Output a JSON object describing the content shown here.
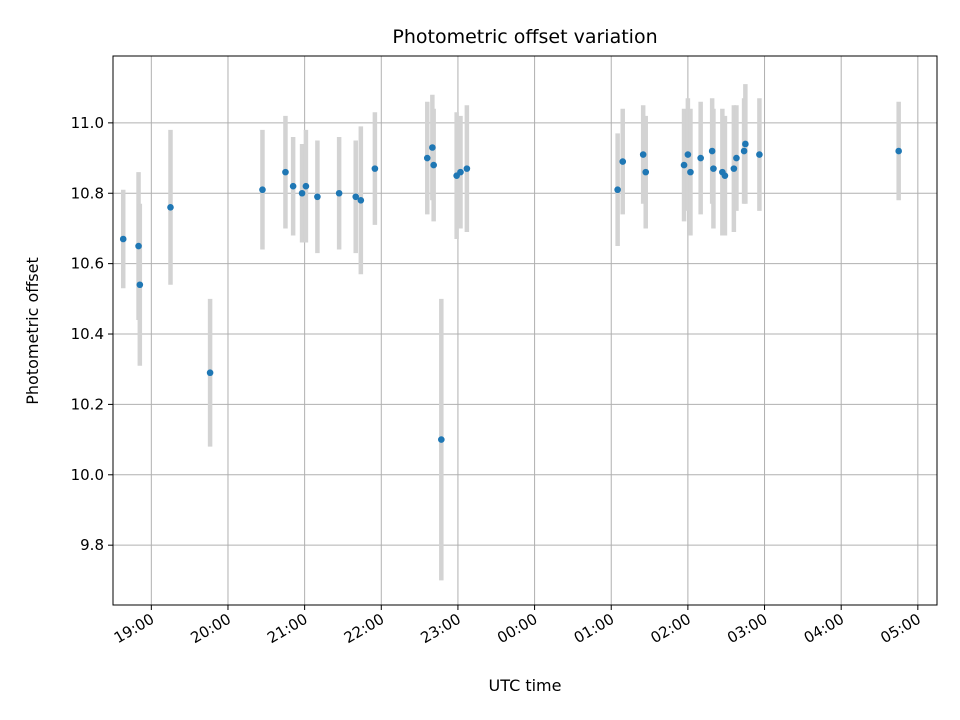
{
  "chart_data": {
    "type": "scatter",
    "title": "Photometric offset variation",
    "xlabel": "UTC time",
    "ylabel": "Photometric offset",
    "grid": true,
    "x_is_time": true,
    "xlim": [
      "18:30",
      "05:15"
    ],
    "ylim": [
      9.63,
      11.19
    ],
    "x_ticks": [
      "19:00",
      "20:00",
      "21:00",
      "22:00",
      "23:00",
      "00:00",
      "01:00",
      "02:00",
      "03:00",
      "04:00",
      "05:00"
    ],
    "y_ticks": [
      9.8,
      10.0,
      10.2,
      10.4,
      10.6,
      10.8,
      11.0
    ],
    "y_tick_labels": [
      "9.8",
      "10.0",
      "10.2",
      "10.4",
      "10.6",
      "10.8",
      "11.0"
    ],
    "colors": {
      "marker": "#1f77b4",
      "errorbar": "#d3d3d3",
      "grid": "#b0b0b0"
    },
    "points": [
      {
        "x": "18:38",
        "y": 10.67,
        "err": 0.14
      },
      {
        "x": "18:50",
        "y": 10.65,
        "err": 0.21
      },
      {
        "x": "18:51",
        "y": 10.54,
        "err": 0.23
      },
      {
        "x": "19:15",
        "y": 10.76,
        "err": 0.22
      },
      {
        "x": "19:46",
        "y": 10.29,
        "err": 0.21
      },
      {
        "x": "20:27",
        "y": 10.81,
        "err": 0.17
      },
      {
        "x": "20:45",
        "y": 10.86,
        "err": 0.16
      },
      {
        "x": "20:51",
        "y": 10.82,
        "err": 0.14
      },
      {
        "x": "20:58",
        "y": 10.8,
        "err": 0.14
      },
      {
        "x": "21:01",
        "y": 10.82,
        "err": 0.16
      },
      {
        "x": "21:10",
        "y": 10.79,
        "err": 0.16
      },
      {
        "x": "21:27",
        "y": 10.8,
        "err": 0.16
      },
      {
        "x": "21:40",
        "y": 10.79,
        "err": 0.16
      },
      {
        "x": "21:44",
        "y": 10.78,
        "err": 0.21
      },
      {
        "x": "21:55",
        "y": 10.87,
        "err": 0.16
      },
      {
        "x": "22:36",
        "y": 10.9,
        "err": 0.16
      },
      {
        "x": "22:40",
        "y": 10.93,
        "err": 0.15
      },
      {
        "x": "22:41",
        "y": 10.88,
        "err": 0.16
      },
      {
        "x": "22:47",
        "y": 10.1,
        "err": 0.4
      },
      {
        "x": "22:59",
        "y": 10.85,
        "err": 0.18
      },
      {
        "x": "23:02",
        "y": 10.86,
        "err": 0.16
      },
      {
        "x": "23:07",
        "y": 10.87,
        "err": 0.18
      },
      {
        "x": "01:05",
        "y": 10.81,
        "err": 0.16
      },
      {
        "x": "01:09",
        "y": 10.89,
        "err": 0.15
      },
      {
        "x": "01:25",
        "y": 10.91,
        "err": 0.14
      },
      {
        "x": "01:27",
        "y": 10.86,
        "err": 0.16
      },
      {
        "x": "01:57",
        "y": 10.88,
        "err": 0.16
      },
      {
        "x": "02:00",
        "y": 10.91,
        "err": 0.16
      },
      {
        "x": "02:02",
        "y": 10.86,
        "err": 0.18
      },
      {
        "x": "02:10",
        "y": 10.9,
        "err": 0.16
      },
      {
        "x": "02:19",
        "y": 10.92,
        "err": 0.15
      },
      {
        "x": "02:20",
        "y": 10.87,
        "err": 0.17
      },
      {
        "x": "02:27",
        "y": 10.86,
        "err": 0.18
      },
      {
        "x": "02:29",
        "y": 10.85,
        "err": 0.17
      },
      {
        "x": "02:36",
        "y": 10.87,
        "err": 0.18
      },
      {
        "x": "02:38",
        "y": 10.9,
        "err": 0.15
      },
      {
        "x": "02:44",
        "y": 10.92,
        "err": 0.15
      },
      {
        "x": "02:45",
        "y": 10.94,
        "err": 0.17
      },
      {
        "x": "02:56",
        "y": 10.91,
        "err": 0.16
      },
      {
        "x": "04:45",
        "y": 10.92,
        "err": 0.14
      }
    ]
  }
}
